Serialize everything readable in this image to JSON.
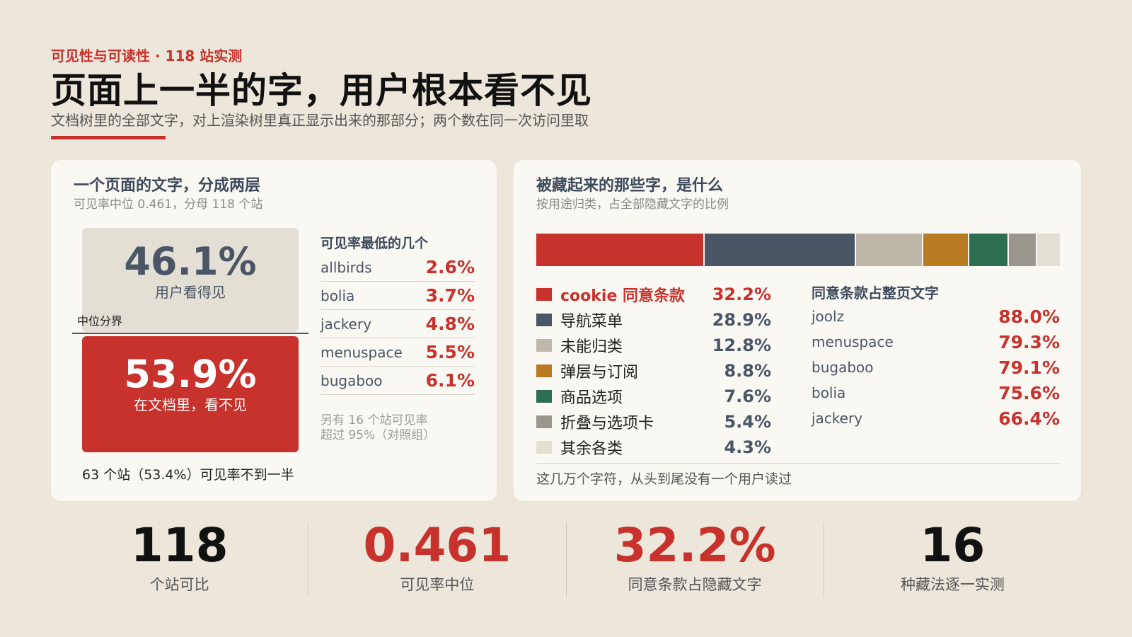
{
  "header": {
    "kicker": "可见性与可读性 · 118 站实测",
    "title": "页面上一半的字，用户根本看不见",
    "subtitle": "文档树里的全部文字，对上渲染树里真正显示出来的那部分；两个数在同一次访问里取"
  },
  "left_card": {
    "title": "一个页面的文字，分成两层",
    "subtitle": "可见率中位 0.461，分母 118 个站",
    "visible_value": "46.1%",
    "visible_label": "用户看得见",
    "median_label": "中位分界",
    "hidden_value": "53.9%",
    "hidden_label": "在文档里，看不见",
    "under_note": "63 个站（53.4%）可见率不到一半",
    "lowest_title": "可见率最低的几个",
    "lowest_note_1": "另有 16 个站可见率",
    "lowest_note_2": "超过 95%（对照组）"
  },
  "right_card": {
    "title": "被藏起来的那些字，是什么",
    "subtitle": "按用途归类，占全部隐藏文字的比例",
    "share_title": "同意条款占整页文字",
    "footer_note": "这几万个字符，从头到尾没有一个用户读过"
  },
  "colors": {
    "red": "#c8322c",
    "slate": "#4a5566",
    "tan": "#bfb7a9",
    "ochre": "#b97a22",
    "green": "#2c6e4f",
    "gray": "#9c978d",
    "light": "#e4dfd5"
  },
  "chart_data": [
    {
      "type": "bar",
      "title": "可见率最低的几个",
      "categories": [
        "allbirds",
        "bolia",
        "jackery",
        "menuspace",
        "bugaboo"
      ],
      "values": [
        2.6,
        3.7,
        4.8,
        5.5,
        6.1
      ],
      "display": [
        "2.6%",
        "3.7%",
        "4.8%",
        "5.5%",
        "6.1%"
      ]
    },
    {
      "type": "bar",
      "title": "被藏起来的那些字，是什么",
      "stacked": true,
      "categories": [
        "cookie 同意条款",
        "导航菜单",
        "未能归类",
        "弹层与订阅",
        "商品选项",
        "折叠与选项卡",
        "其余各类"
      ],
      "values": [
        32.2,
        28.9,
        12.8,
        8.8,
        7.6,
        5.4,
        4.3
      ],
      "display": [
        "32.2%",
        "28.9%",
        "12.8%",
        "8.8%",
        "7.6%",
        "5.4%",
        "4.3%"
      ],
      "colors": [
        "#c8322c",
        "#4a5566",
        "#bfb7a9",
        "#b97a22",
        "#2c6e4f",
        "#9c978d",
        "#e4dfd5"
      ]
    },
    {
      "type": "table",
      "title": "同意条款占整页文字",
      "categories": [
        "joolz",
        "menuspace",
        "bugaboo",
        "bolia",
        "jackery"
      ],
      "values": [
        88.0,
        79.3,
        79.1,
        75.6,
        66.4
      ],
      "display": [
        "88.0%",
        "79.3%",
        "79.1%",
        "75.6%",
        "66.4%"
      ]
    }
  ],
  "stats": [
    {
      "num": "118",
      "label": "个站可比",
      "color": "#111111"
    },
    {
      "num": "0.461",
      "label": "可见率中位",
      "color": "#c8322c"
    },
    {
      "num": "32.2%",
      "label": "同意条款占隐藏文字",
      "color": "#c8322c"
    },
    {
      "num": "16",
      "label": "种藏法逐一实测",
      "color": "#111111"
    }
  ]
}
